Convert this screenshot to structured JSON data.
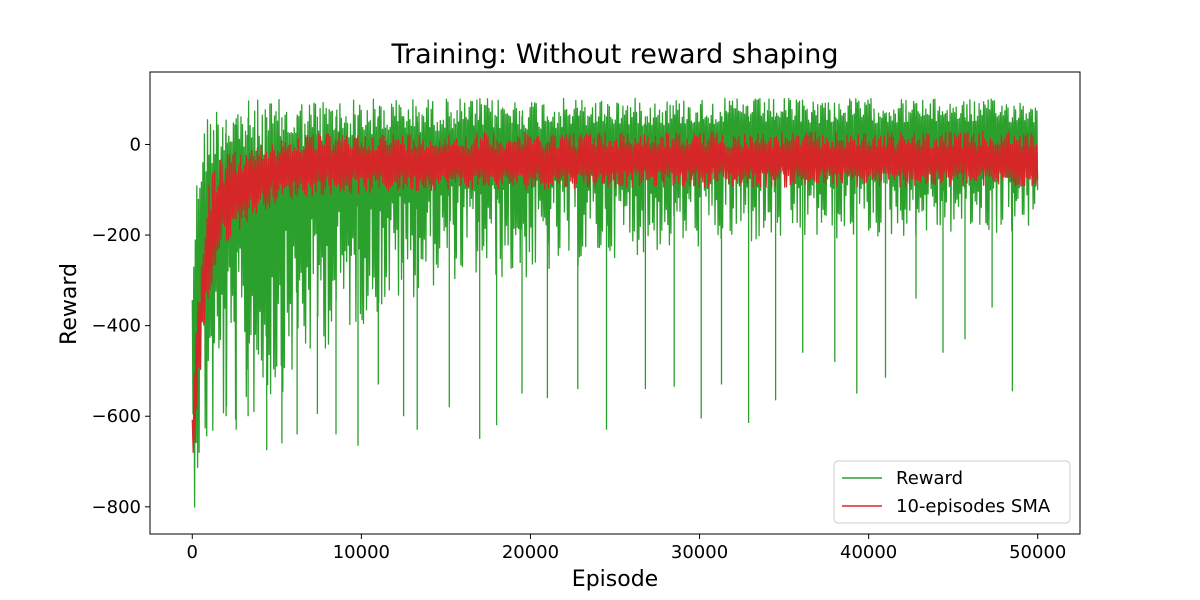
{
  "chart_data": {
    "type": "line",
    "title": "Training: Without reward shaping",
    "xlabel": "Episode",
    "ylabel": "Reward",
    "xlim": [
      -2500,
      52500
    ],
    "ylim": [
      -860,
      160
    ],
    "xticks": [
      0,
      10000,
      20000,
      30000,
      40000,
      50000
    ],
    "xtick_labels": [
      "0",
      "10000",
      "20000",
      "30000",
      "40000",
      "50000"
    ],
    "yticks": [
      -800,
      -600,
      -400,
      -200,
      0
    ],
    "ytick_labels": [
      "−800",
      "−600",
      "−400",
      "−200",
      "0"
    ],
    "grid": false,
    "legend_position": "lower-right",
    "colors": {
      "reward": "#2ca02c",
      "sma": "#d62728"
    },
    "series": [
      {
        "name": "Reward",
        "color": "#2ca02c",
        "envelope": {
          "x": [
            0,
            150,
            300,
            500,
            700,
            1000,
            1300,
            1600,
            2000,
            2500,
            3000,
            4000,
            5000,
            6000,
            8000,
            10000,
            15000,
            20000,
            25000,
            30000,
            35000,
            40000,
            45000,
            50000
          ],
          "upper": [
            -280,
            -150,
            -50,
            20,
            50,
            80,
            90,
            95,
            95,
            98,
            98,
            100,
            100,
            100,
            102,
            102,
            102,
            102,
            102,
            102,
            102,
            102,
            100,
            100
          ],
          "lower": [
            -820,
            -800,
            -760,
            -740,
            -720,
            -700,
            -680,
            -650,
            -640,
            -630,
            -620,
            -600,
            -560,
            -520,
            -450,
            -400,
            -300,
            -300,
            -250,
            -230,
            -220,
            -210,
            -200,
            -200
          ]
        },
        "spikes": [
          {
            "x": 2000,
            "y": -600
          },
          {
            "x": 2600,
            "y": -630
          },
          {
            "x": 3300,
            "y": -600
          },
          {
            "x": 4400,
            "y": -675
          },
          {
            "x": 5300,
            "y": -660
          },
          {
            "x": 6200,
            "y": -640
          },
          {
            "x": 7400,
            "y": -595
          },
          {
            "x": 8500,
            "y": -640
          },
          {
            "x": 9800,
            "y": -665
          },
          {
            "x": 11000,
            "y": -530
          },
          {
            "x": 12500,
            "y": -600
          },
          {
            "x": 13300,
            "y": -630
          },
          {
            "x": 15200,
            "y": -580
          },
          {
            "x": 17000,
            "y": -650
          },
          {
            "x": 18000,
            "y": -620
          },
          {
            "x": 19500,
            "y": -550
          },
          {
            "x": 21000,
            "y": -560
          },
          {
            "x": 22800,
            "y": -540
          },
          {
            "x": 24500,
            "y": -630
          },
          {
            "x": 26800,
            "y": -540
          },
          {
            "x": 28500,
            "y": -535
          },
          {
            "x": 30100,
            "y": -605
          },
          {
            "x": 31300,
            "y": -530
          },
          {
            "x": 32900,
            "y": -615
          },
          {
            "x": 34500,
            "y": -565
          },
          {
            "x": 36100,
            "y": -460
          },
          {
            "x": 38000,
            "y": -480
          },
          {
            "x": 39300,
            "y": -550
          },
          {
            "x": 41000,
            "y": -515
          },
          {
            "x": 42800,
            "y": -340
          },
          {
            "x": 44400,
            "y": -460
          },
          {
            "x": 45700,
            "y": -430
          },
          {
            "x": 47300,
            "y": -360
          },
          {
            "x": 48500,
            "y": -545
          }
        ]
      },
      {
        "name": "10-episodes SMA",
        "color": "#d62728",
        "envelope": {
          "x": [
            0,
            150,
            300,
            500,
            700,
            1000,
            1300,
            1600,
            2000,
            2500,
            3000,
            4000,
            5000,
            6000,
            8000,
            10000,
            15000,
            20000,
            25000,
            30000,
            35000,
            40000,
            45000,
            50000
          ],
          "upper": [
            -550,
            -450,
            -350,
            -250,
            -150,
            -80,
            -50,
            -35,
            -20,
            -15,
            -10,
            0,
            15,
            20,
            25,
            25,
            25,
            28,
            28,
            28,
            28,
            28,
            28,
            28
          ],
          "lower": [
            -750,
            -700,
            -600,
            -500,
            -420,
            -350,
            -300,
            -250,
            -220,
            -200,
            -180,
            -150,
            -130,
            -120,
            -110,
            -110,
            -100,
            -100,
            -95,
            -95,
            -95,
            -95,
            -95,
            -95
          ]
        }
      }
    ]
  }
}
